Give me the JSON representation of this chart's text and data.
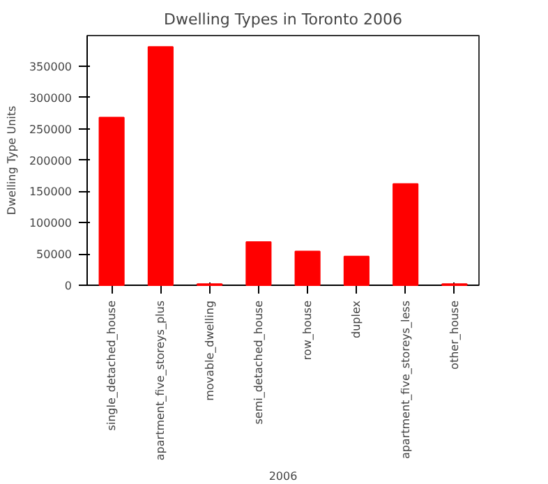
{
  "chart_data": {
    "type": "bar",
    "title": "Dwelling Types in Toronto 2006",
    "xlabel": "2006",
    "ylabel": "Dwelling Type Units",
    "categories": [
      "single_detached_house",
      "apartment_five_storeys_plus",
      "movable_dwelling",
      "semi_detached_house",
      "row_house",
      "duplex",
      "apartment_five_storeys_less",
      "other_house"
    ],
    "values": [
      268000,
      381000,
      2000,
      69000,
      54000,
      46000,
      162000,
      2000
    ],
    "color": "#ff0000",
    "ylim": [
      0,
      399000
    ],
    "yticks": [
      0,
      50000,
      100000,
      150000,
      200000,
      250000,
      300000,
      350000
    ],
    "grid": false
  }
}
